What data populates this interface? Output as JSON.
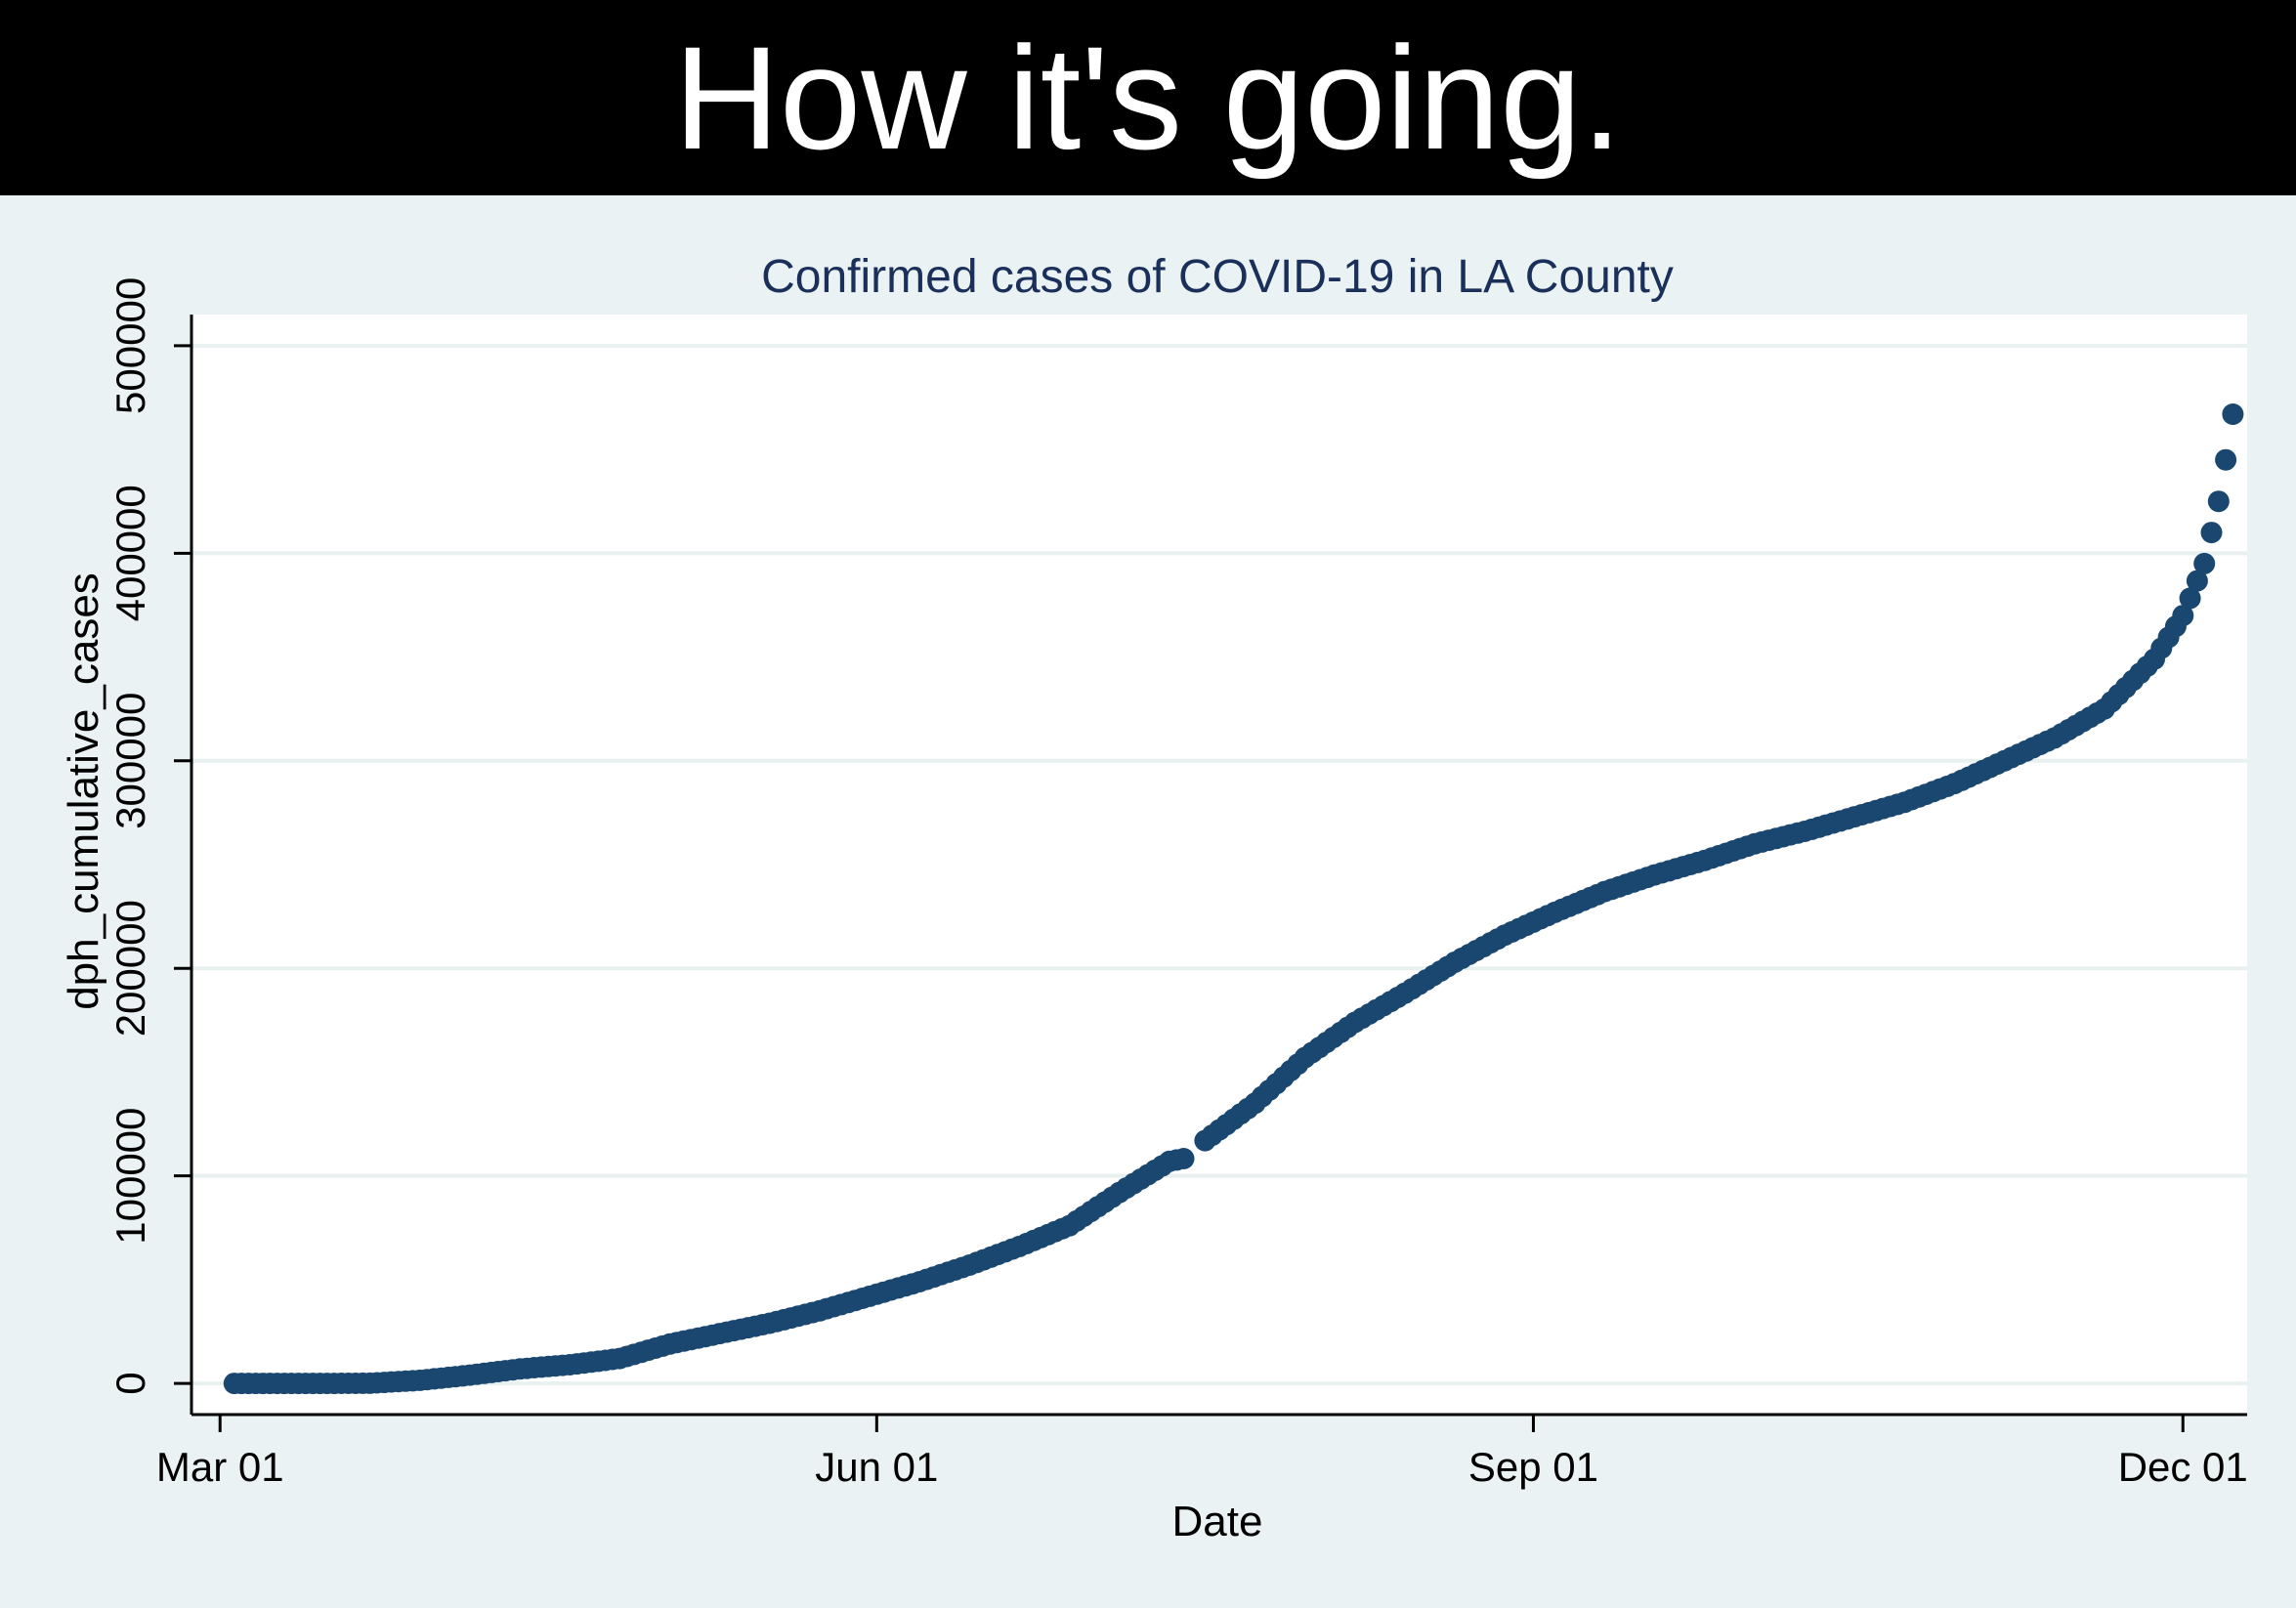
{
  "banner": {
    "text": "How it's going."
  },
  "colors": {
    "banner_bg": "#000000",
    "banner_text": "#ffffff",
    "page_bg": "#eaf2f3",
    "plot_bg": "#ffffff",
    "grid": "#e8f0f0",
    "marker": "#1a476f",
    "title": "#1a2f5a"
  },
  "chart_data": {
    "type": "scatter",
    "title": "Confirmed cases of COVID-19 in LA County",
    "xlabel": "Date",
    "ylabel": "dph_cumulative_cases",
    "x_ticks": [
      "Mar 01",
      "Jun 01",
      "Sep 01",
      "Dec 01"
    ],
    "y_ticks": [
      "0",
      "100000",
      "200000",
      "300000",
      "400000",
      "500000"
    ],
    "xlim": [
      "2020-02-26",
      "2020-12-10"
    ],
    "ylim": [
      -15000,
      515000
    ],
    "grid": true,
    "marker_color": "#1a476f",
    "series": [
      {
        "points": [
          [
            "2020-03-03",
            0
          ],
          [
            "2020-03-15",
            0
          ],
          [
            "2020-03-22",
            100
          ],
          [
            "2020-03-29",
            1500
          ],
          [
            "2020-04-05",
            4000
          ],
          [
            "2020-04-12",
            7000
          ],
          [
            "2020-04-19",
            9000
          ],
          [
            "2020-04-26",
            12000
          ],
          [
            "2020-05-03",
            19000
          ],
          [
            "2020-05-10",
            24000
          ],
          [
            "2020-05-17",
            29000
          ],
          [
            "2020-05-24",
            35000
          ],
          [
            "2020-05-31",
            42000
          ],
          [
            "2020-06-07",
            49000
          ],
          [
            "2020-06-14",
            57000
          ],
          [
            "2020-06-21",
            66000
          ],
          [
            "2020-06-28",
            76000
          ],
          [
            "2020-07-05",
            92000
          ],
          [
            "2020-07-12",
            107000
          ],
          [
            "2020-07-15",
            109000
          ],
          [
            "2020-07-17",
            117000
          ],
          [
            "2020-07-24",
            135000
          ],
          [
            "2020-07-31",
            157000
          ],
          [
            "2020-08-07",
            174000
          ],
          [
            "2020-08-14",
            188000
          ],
          [
            "2020-08-21",
            203000
          ],
          [
            "2020-08-28",
            216000
          ],
          [
            "2020-09-04",
            227000
          ],
          [
            "2020-09-11",
            237000
          ],
          [
            "2020-09-18",
            245000
          ],
          [
            "2020-09-25",
            252000
          ],
          [
            "2020-10-02",
            260000
          ],
          [
            "2020-10-09",
            266000
          ],
          [
            "2020-10-16",
            273000
          ],
          [
            "2020-10-23",
            280000
          ],
          [
            "2020-10-30",
            289000
          ],
          [
            "2020-11-06",
            300000
          ],
          [
            "2020-11-13",
            311000
          ],
          [
            "2020-11-20",
            325000
          ],
          [
            "2020-11-27",
            349000
          ],
          [
            "2020-12-01",
            370000
          ],
          [
            "2020-12-04",
            395000
          ],
          [
            "2020-12-06",
            425000
          ],
          [
            "2020-12-07",
            445000
          ],
          [
            "2020-12-08",
            467000
          ]
        ]
      }
    ]
  }
}
